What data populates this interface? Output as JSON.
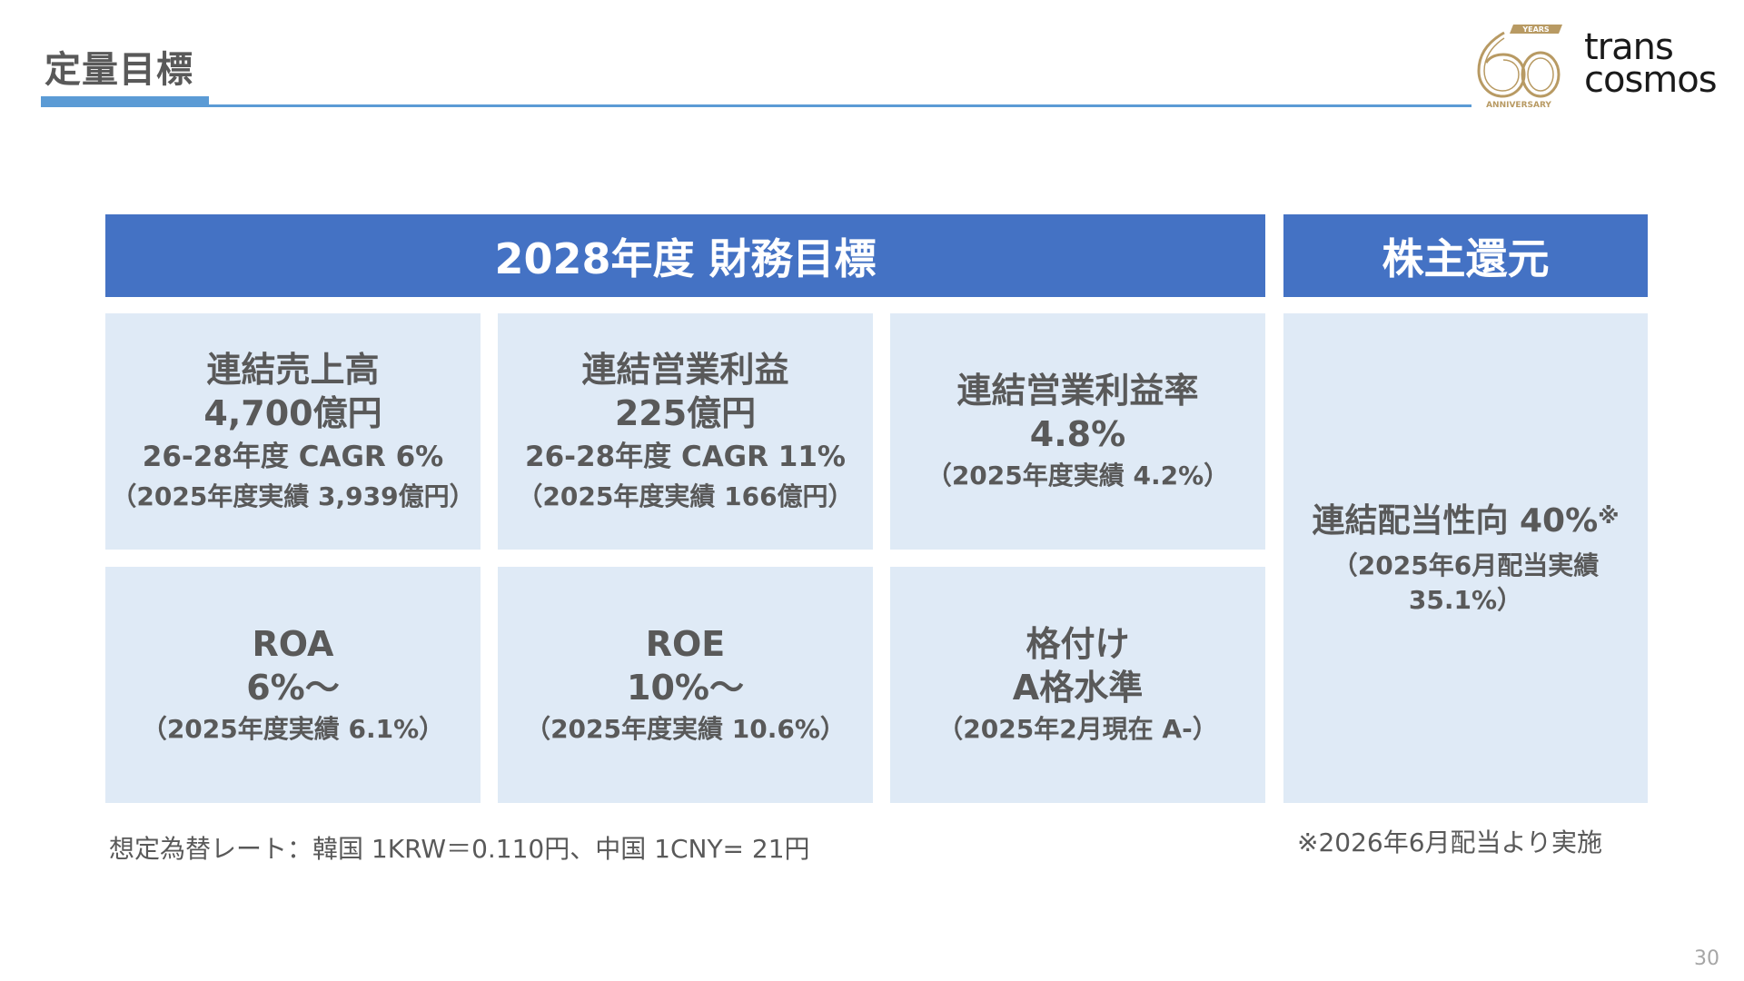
{
  "page": {
    "title": "定量目標",
    "page_number": "30"
  },
  "logo": {
    "anniversary_number": "60",
    "anniversary_years": "YEARS",
    "anniversary_label": "ANNIVERSARY",
    "brand_line1": "trans",
    "brand_line2": "cosmos",
    "gold": "#b89a63"
  },
  "colors": {
    "header_blue": "#4472c4",
    "cell_bg": "#dfeaf6",
    "accent_line": "#5b9bd5",
    "text_gray": "#595959"
  },
  "headers": {
    "financial": "2028年度 財務目標",
    "shareholder": "株主還元"
  },
  "cells": {
    "sales": {
      "title": "連結売上高",
      "value": "4,700億円",
      "cagr": "26-28年度 CAGR 6%",
      "actual": "（2025年度実績 3,939億円）"
    },
    "op_income": {
      "title": "連結営業利益",
      "value": "225億円",
      "cagr": "26-28年度 CAGR 11%",
      "actual": "（2025年度実績 166億円）"
    },
    "op_margin": {
      "title": "連結営業利益率",
      "value": "4.8%",
      "actual": "（2025年度実績 4.2%）"
    },
    "roa": {
      "title": "ROA",
      "value": "6%～",
      "actual": "（2025年度実績 6.1%）"
    },
    "roe": {
      "title": "ROE",
      "value": "10%～",
      "actual": "（2025年度実績 10.6%）"
    },
    "rating": {
      "title": "格付け",
      "value": "A格水準",
      "actual": "（2025年2月現在 A-）"
    },
    "dividend": {
      "title": "連結配当性向 40%",
      "mark": "※",
      "actual_line1": "（2025年6月配当実績",
      "actual_line2": "35.1%）"
    }
  },
  "footnotes": {
    "exchange_rate": "想定為替レート：韓国 1KRW＝0.110円、中国 1CNY= 21円",
    "dividend_note": "※2026年6月配当より実施"
  }
}
